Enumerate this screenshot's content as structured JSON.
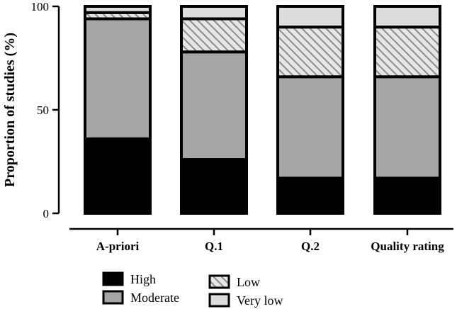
{
  "chart_data": {
    "type": "bar",
    "stacked": true,
    "ylabel": "Proportion of studies (%)",
    "xlabel": "",
    "ylim": [
      0,
      100
    ],
    "yticks": [
      0,
      50,
      100
    ],
    "categories": [
      "A-priori",
      "Q.1",
      "Q.2",
      "Quality rating"
    ],
    "series": [
      {
        "name": "High",
        "values": [
          36,
          26,
          17,
          17
        ],
        "fill": "#000000",
        "pattern": "solid"
      },
      {
        "name": "Moderate",
        "values": [
          58,
          52,
          49,
          49
        ],
        "fill": "#a6a6a6",
        "pattern": "solid"
      },
      {
        "name": "Low",
        "values": [
          3,
          16,
          24,
          24
        ],
        "fill": "#c8c8c8",
        "pattern": "hatched"
      },
      {
        "name": "Very low",
        "values": [
          3,
          6,
          10,
          10
        ],
        "fill": "#dcdcdc",
        "pattern": "solid"
      }
    ],
    "legend_position": "bottom",
    "grid": false
  }
}
